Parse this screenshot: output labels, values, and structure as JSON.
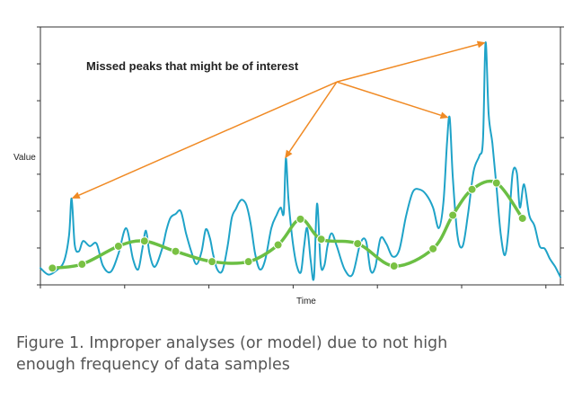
{
  "chart_data": {
    "type": "line",
    "xlabel": "Time",
    "ylabel": "Value",
    "xlim": [
      0,
      100
    ],
    "ylim": [
      0,
      100
    ],
    "xticks": [
      0,
      16.2,
      32.4,
      48.6,
      64.8,
      81.0,
      97.2
    ],
    "yticks": [
      0,
      14.3,
      28.6,
      42.9,
      57.1,
      71.4,
      85.7,
      100
    ],
    "grid": false,
    "annotation": "Missed peaks that might be of interest",
    "annotation_source": {
      "x": 57.0,
      "y": 78.7
    },
    "annotation_targets": [
      {
        "x": 6.0,
        "y": 33.5
      },
      {
        "x": 47.0,
        "y": 49.0
      },
      {
        "x": 78.5,
        "y": 64.8
      },
      {
        "x": 85.6,
        "y": 94.0
      }
    ],
    "series": [
      {
        "color": "#1fa3c8",
        "x": [
          0,
          1.5,
          3.0,
          4.5,
          5.5,
          6.0,
          6.6,
          7.4,
          8.2,
          9.5,
          10.8,
          12.0,
          13.5,
          15.0,
          16.5,
          17.8,
          18.8,
          19.6,
          20.3,
          21.0,
          22.0,
          23.4,
          24.2,
          25.0,
          26.0,
          27.0,
          28.0,
          29.0,
          30.0,
          31.0,
          31.8,
          32.6,
          33.2,
          34.0,
          35.0,
          36.0,
          36.8,
          37.6,
          38.2,
          38.8,
          39.6,
          40.4,
          41.3,
          42.2,
          43.2,
          44.4,
          45.4,
          46.2,
          46.8,
          47.2,
          47.7,
          48.5,
          49.3,
          50.1,
          50.7,
          51.3,
          52.0,
          52.6,
          53.2,
          53.9,
          54.6,
          55.2,
          56.0,
          57.0,
          58.5,
          60.0,
          61.5,
          62.6,
          63.5,
          64.4,
          65.4,
          66.5,
          67.7,
          69.0,
          70.3,
          71.6,
          72.9,
          74.2,
          75.5,
          76.6,
          77.5,
          78.2,
          78.7,
          79.3,
          80.2,
          81.2,
          82.2,
          83.3,
          84.4,
          85.1,
          85.6,
          86.2,
          86.9,
          87.7,
          88.5,
          89.3,
          90.0,
          90.8,
          91.6,
          92.2,
          93.0,
          94.0,
          95.0,
          96.0,
          97.0,
          98.0,
          99.0,
          100.0
        ],
        "y": [
          6.5,
          4.0,
          5.5,
          9.0,
          19.0,
          33.5,
          15.5,
          13.0,
          17.0,
          15.0,
          16.0,
          7.5,
          5.0,
          12.0,
          22.0,
          10.0,
          6.0,
          14.0,
          21.0,
          12.0,
          7.0,
          14.0,
          21.0,
          26.0,
          27.5,
          28.5,
          20.0,
          13.0,
          8.0,
          13.0,
          21.5,
          18.0,
          12.0,
          6.0,
          5.5,
          15.0,
          26.0,
          29.5,
          32.0,
          33.0,
          31.0,
          24.0,
          12.0,
          6.0,
          9.5,
          22.0,
          27.0,
          30.0,
          28.0,
          49.0,
          33.0,
          17.0,
          7.5,
          5.0,
          15.0,
          22.0,
          9.0,
          3.0,
          31.5,
          8.0,
          7.5,
          15.0,
          20.0,
          15.0,
          6.0,
          4.0,
          16.0,
          17.0,
          5.5,
          7.0,
          18.0,
          16.0,
          11.0,
          13.5,
          26.5,
          36.0,
          37.0,
          35.0,
          30.0,
          22.0,
          32.0,
          55.5,
          64.8,
          42.0,
          19.0,
          15.0,
          27.0,
          44.0,
          50.0,
          56.0,
          94.0,
          66.0,
          55.0,
          38.0,
          20.0,
          11.5,
          21.0,
          43.0,
          43.5,
          30.0,
          39.0,
          27.0,
          23.0,
          15.0,
          14.0,
          10.0,
          7.0,
          3.0
        ]
      },
      {
        "color": "#6bbf44",
        "marker_color": "#7ac143",
        "x": [
          2.3,
          8.0,
          15.0,
          20.0,
          26.0,
          33.0,
          40.0,
          45.7,
          50.0,
          54.0,
          61.0,
          68.0,
          75.5,
          79.3,
          83.0,
          87.7,
          92.7
        ],
        "y": [
          6.5,
          8.0,
          15.0,
          17.0,
          13.0,
          9.0,
          9.0,
          15.5,
          25.5,
          17.7,
          16.0,
          7.3,
          14.0,
          27.0,
          37.0,
          39.5,
          25.8
        ]
      }
    ]
  },
  "caption": {
    "line1": "Figure 1. Improper analyses (or model) due to not high",
    "line2": "enough frequency of data samples"
  }
}
